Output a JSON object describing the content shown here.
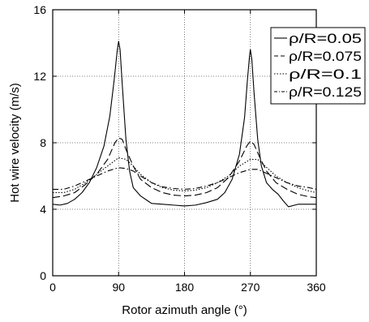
{
  "chart_data": {
    "type": "line",
    "xlabel": "Rotor azimuth angle (°)",
    "ylabel": "Hot wire velocity (m/s)",
    "xlim": [
      0,
      360
    ],
    "ylim": [
      0,
      16
    ],
    "xticks": [
      0,
      90,
      180,
      270,
      360
    ],
    "yticks": [
      0,
      4,
      8,
      12,
      16
    ],
    "xtick_labels": [
      "0",
      "90",
      "180",
      "270",
      "360"
    ],
    "ytick_labels": [
      "0",
      "4",
      "8",
      "12",
      "16"
    ],
    "grid": "dotted",
    "legend_position": "top-right",
    "series": [
      {
        "name": "ρ/R=0.05",
        "dash": "solid",
        "points": [
          [
            0,
            4.3
          ],
          [
            10,
            4.25
          ],
          [
            20,
            4.35
          ],
          [
            30,
            4.6
          ],
          [
            40,
            5.0
          ],
          [
            50,
            5.6
          ],
          [
            60,
            6.5
          ],
          [
            70,
            7.8
          ],
          [
            78,
            9.6
          ],
          [
            84,
            11.8
          ],
          [
            88,
            13.5
          ],
          [
            90,
            14.1
          ],
          [
            92,
            13.6
          ],
          [
            95,
            11.5
          ],
          [
            100,
            8.2
          ],
          [
            105,
            6.3
          ],
          [
            110,
            5.3
          ],
          [
            120,
            4.8
          ],
          [
            130,
            4.5
          ],
          [
            135,
            4.35
          ],
          [
            150,
            4.3
          ],
          [
            165,
            4.25
          ],
          [
            180,
            4.2
          ],
          [
            195,
            4.25
          ],
          [
            210,
            4.4
          ],
          [
            225,
            4.6
          ],
          [
            235,
            5.0
          ],
          [
            245,
            5.8
          ],
          [
            255,
            7.3
          ],
          [
            262,
            9.5
          ],
          [
            266,
            11.8
          ],
          [
            269,
            13.3
          ],
          [
            270,
            13.6
          ],
          [
            272,
            13.0
          ],
          [
            275,
            11.0
          ],
          [
            280,
            8.2
          ],
          [
            285,
            6.6
          ],
          [
            292,
            5.6
          ],
          [
            300,
            5.2
          ],
          [
            308,
            4.9
          ],
          [
            315,
            4.5
          ],
          [
            322,
            4.15
          ],
          [
            335,
            4.3
          ],
          [
            350,
            4.3
          ],
          [
            360,
            4.3
          ]
        ]
      },
      {
        "name": "ρ/R=0.075",
        "dash": "longdash",
        "points": [
          [
            0,
            4.7
          ],
          [
            15,
            4.8
          ],
          [
            30,
            5.0
          ],
          [
            45,
            5.5
          ],
          [
            60,
            6.1
          ],
          [
            75,
            7.0
          ],
          [
            85,
            8.0
          ],
          [
            90,
            8.3
          ],
          [
            95,
            8.2
          ],
          [
            100,
            7.6
          ],
          [
            110,
            6.6
          ],
          [
            120,
            5.8
          ],
          [
            135,
            5.3
          ],
          [
            150,
            5.0
          ],
          [
            165,
            4.85
          ],
          [
            180,
            4.8
          ],
          [
            195,
            4.85
          ],
          [
            210,
            5.0
          ],
          [
            225,
            5.3
          ],
          [
            240,
            5.9
          ],
          [
            255,
            6.9
          ],
          [
            265,
            7.8
          ],
          [
            270,
            8.1
          ],
          [
            275,
            7.9
          ],
          [
            282,
            7.2
          ],
          [
            292,
            6.3
          ],
          [
            305,
            5.6
          ],
          [
            320,
            5.2
          ],
          [
            335,
            4.9
          ],
          [
            350,
            4.75
          ],
          [
            360,
            4.7
          ]
        ]
      },
      {
        "name": "ρ/R=0.1",
        "dash": "dotted",
        "points": [
          [
            0,
            5.0
          ],
          [
            15,
            5.0
          ],
          [
            30,
            5.2
          ],
          [
            45,
            5.6
          ],
          [
            60,
            6.1
          ],
          [
            75,
            6.6
          ],
          [
            90,
            7.1
          ],
          [
            100,
            7.0
          ],
          [
            110,
            6.6
          ],
          [
            120,
            6.1
          ],
          [
            135,
            5.6
          ],
          [
            150,
            5.3
          ],
          [
            165,
            5.15
          ],
          [
            180,
            5.1
          ],
          [
            195,
            5.15
          ],
          [
            210,
            5.3
          ],
          [
            225,
            5.6
          ],
          [
            240,
            6.0
          ],
          [
            255,
            6.6
          ],
          [
            270,
            7.0
          ],
          [
            280,
            7.0
          ],
          [
            290,
            6.6
          ],
          [
            305,
            6.0
          ],
          [
            320,
            5.6
          ],
          [
            335,
            5.3
          ],
          [
            350,
            5.1
          ],
          [
            360,
            5.0
          ]
        ]
      },
      {
        "name": "ρ/R=0.125",
        "dash": "dashdot",
        "points": [
          [
            0,
            5.2
          ],
          [
            15,
            5.2
          ],
          [
            30,
            5.4
          ],
          [
            45,
            5.7
          ],
          [
            60,
            6.0
          ],
          [
            75,
            6.3
          ],
          [
            90,
            6.5
          ],
          [
            100,
            6.45
          ],
          [
            110,
            6.3
          ],
          [
            120,
            6.0
          ],
          [
            135,
            5.6
          ],
          [
            150,
            5.35
          ],
          [
            165,
            5.25
          ],
          [
            180,
            5.2
          ],
          [
            195,
            5.25
          ],
          [
            210,
            5.4
          ],
          [
            225,
            5.6
          ],
          [
            240,
            5.9
          ],
          [
            255,
            6.2
          ],
          [
            270,
            6.4
          ],
          [
            280,
            6.4
          ],
          [
            290,
            6.2
          ],
          [
            305,
            5.9
          ],
          [
            320,
            5.6
          ],
          [
            335,
            5.4
          ],
          [
            350,
            5.3
          ],
          [
            360,
            5.2
          ]
        ]
      }
    ]
  }
}
